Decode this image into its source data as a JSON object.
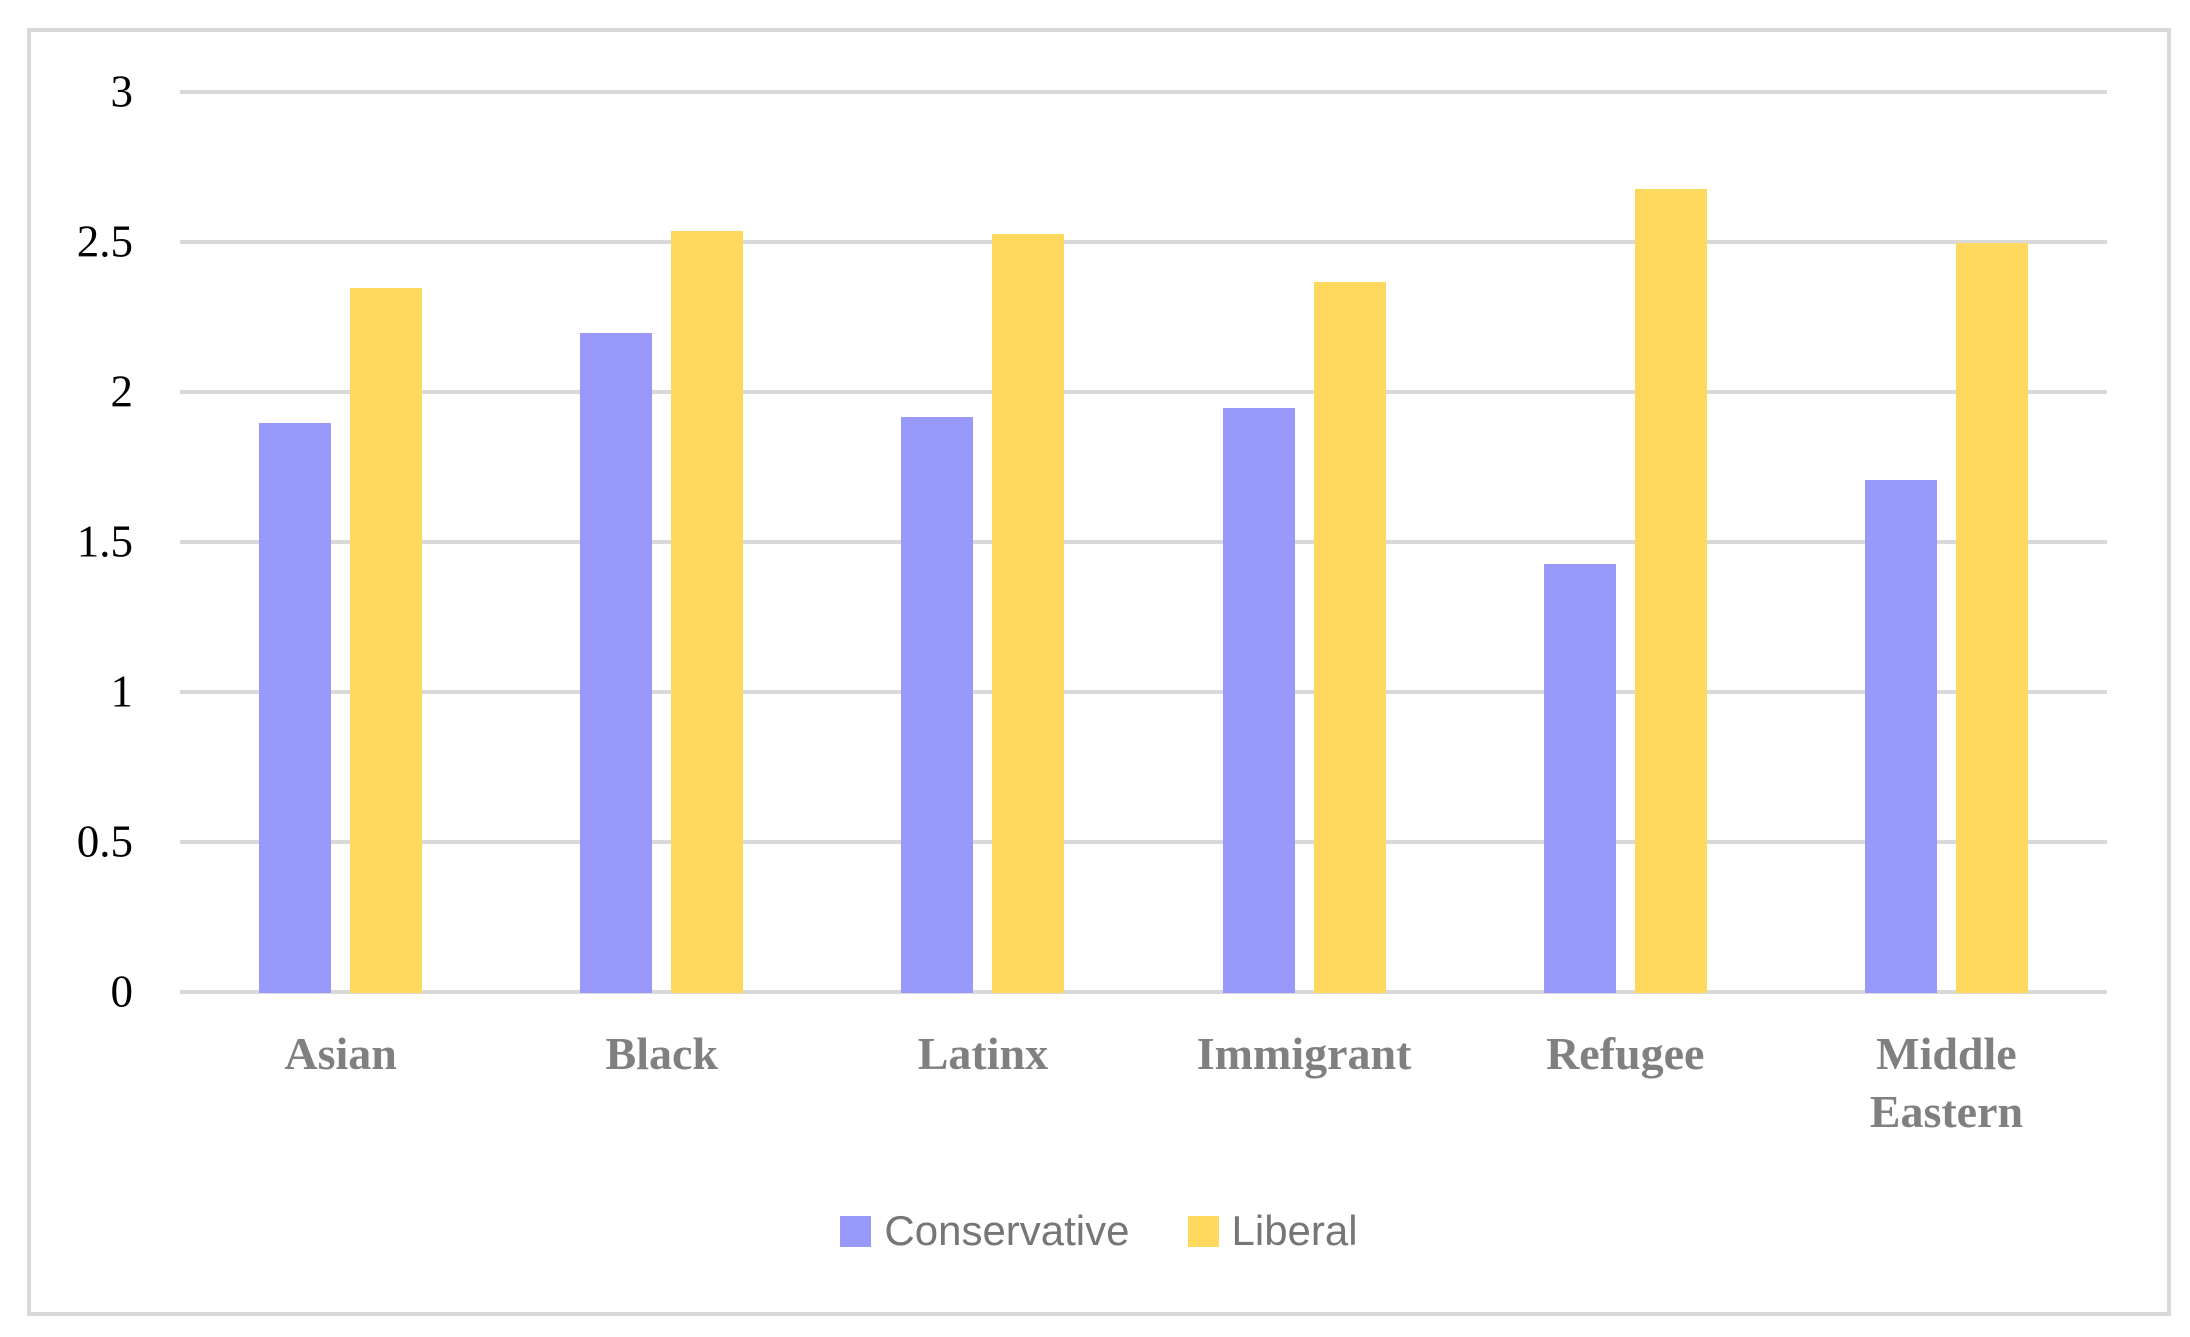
{
  "chart_data": {
    "type": "bar",
    "title": "",
    "xlabel": "",
    "ylabel": "",
    "categories": [
      "Asian",
      "Black",
      "Latinx",
      "Immigrant",
      "Refugee",
      "Middle Eastern"
    ],
    "series": [
      {
        "name": "Conservative",
        "color": "#9999FC",
        "values": [
          1.9,
          2.2,
          1.92,
          1.95,
          1.43,
          1.71
        ]
      },
      {
        "name": "Liberal",
        "color": "#FFD95E",
        "values": [
          2.35,
          2.54,
          2.53,
          2.37,
          2.68,
          2.5
        ]
      }
    ],
    "ylim": [
      0,
      3
    ],
    "ytick_labels": [
      "0",
      "0.5",
      "1",
      "1.5",
      "2",
      "2.5",
      "3"
    ],
    "grid": true,
    "legend_position": "bottom-center",
    "styles": {
      "gridline_color": "#d9d9d9",
      "frame_border_color": "#d9d9d9",
      "tick_label_color": "#000000",
      "category_label_color": "#808080",
      "legend_label_color": "#767676"
    }
  }
}
